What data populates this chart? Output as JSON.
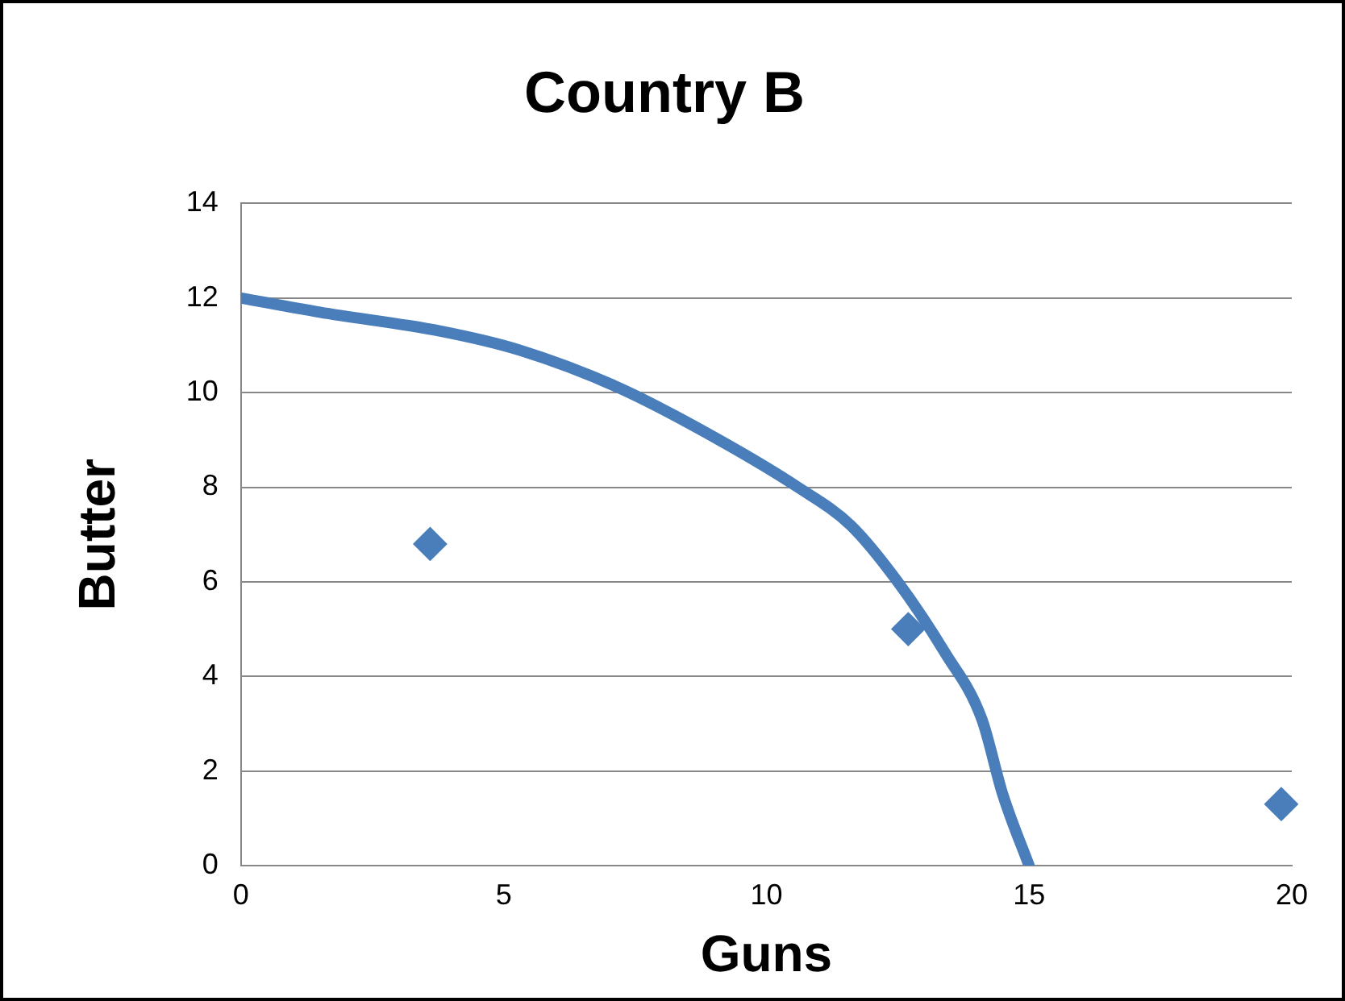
{
  "chart_data": {
    "type": "scatter",
    "title": "Country B",
    "xlabel": "Guns",
    "ylabel": "Butter",
    "xlim": [
      0,
      20
    ],
    "ylim": [
      0,
      14
    ],
    "xticks": [
      0,
      5,
      10,
      15,
      20
    ],
    "yticks": [
      0,
      2,
      4,
      6,
      8,
      10,
      12,
      14
    ],
    "grid": "y",
    "series": [
      {
        "type": "line",
        "marker": "none",
        "color": "#4a7ebb",
        "x": [
          0,
          1.5,
          3.8,
          5.3,
          7.2,
          9.1,
          10.6,
          11.6,
          12.5,
          13.4,
          14.1,
          14.5,
          15
        ],
        "values": [
          12,
          11.7,
          11.3,
          10.9,
          10.1,
          9,
          8,
          7.2,
          6,
          4.5,
          3.1,
          1.5,
          0
        ]
      },
      {
        "type": "scatter",
        "marker": "diamond",
        "color": "#4a7ebb",
        "x": [
          3.6,
          12.7,
          19.8
        ],
        "values": [
          6.8,
          5,
          1.3
        ]
      }
    ]
  }
}
